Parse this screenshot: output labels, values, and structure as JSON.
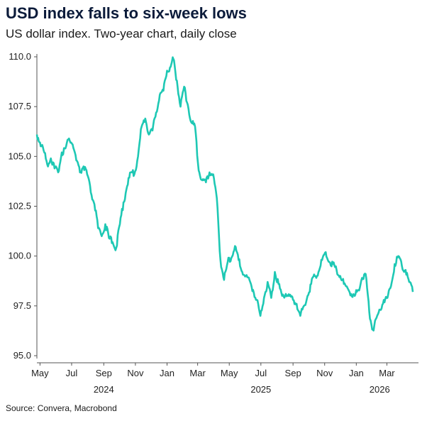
{
  "title": "USD index falls to six-week lows",
  "subtitle": "US dollar index. Two-year chart, daily close",
  "source": "Source: Convera, Macrobond",
  "chart_data": {
    "type": "line",
    "title": "USD index falls to six-week lows",
    "subtitle": "US dollar index. Two-year chart, daily close",
    "ylim": [
      95.0,
      110.0
    ],
    "y_ticks": [
      "110.0",
      "107.5",
      "105.0",
      "102.5",
      "100.0",
      "97.5",
      "95.0"
    ],
    "x_ticks": [
      "May",
      "Jul",
      "Sep",
      "Nov",
      "Jan",
      "Mar",
      "May",
      "Jul",
      "Sep",
      "Nov",
      "Jan",
      "Mar"
    ],
    "x_years": [
      "2024",
      "2025",
      "2026"
    ],
    "grid": false,
    "color": "#1ec8b4",
    "series": [
      {
        "x": [
          "2024-04-25",
          "2024-05-01",
          "2024-05-08",
          "2024-05-15",
          "2024-05-22",
          "2024-05-29",
          "2024-06-05",
          "2024-06-12",
          "2024-06-19",
          "2024-06-26",
          "2024-07-03",
          "2024-07-10",
          "2024-07-17",
          "2024-07-24",
          "2024-07-31",
          "2024-08-07",
          "2024-08-14",
          "2024-08-21",
          "2024-08-28",
          "2024-09-04",
          "2024-09-11",
          "2024-09-18",
          "2024-09-25",
          "2024-10-02",
          "2024-10-09",
          "2024-10-16",
          "2024-10-23",
          "2024-10-30",
          "2024-11-06",
          "2024-11-13",
          "2024-11-20",
          "2024-11-27",
          "2024-12-04",
          "2024-12-11",
          "2024-12-18",
          "2024-12-25",
          "2025-01-01",
          "2025-01-08",
          "2025-01-13",
          "2025-01-20",
          "2025-01-27",
          "2025-02-03",
          "2025-02-10",
          "2025-02-17",
          "2025-02-24",
          "2025-03-03",
          "2025-03-10",
          "2025-03-17",
          "2025-03-24",
          "2025-03-31",
          "2025-04-07",
          "2025-04-14",
          "2025-04-21",
          "2025-04-28",
          "2025-05-05",
          "2025-05-12",
          "2025-05-19",
          "2025-05-26",
          "2025-06-02",
          "2025-06-09",
          "2025-06-16",
          "2025-06-23",
          "2025-06-30",
          "2025-07-07",
          "2025-07-14",
          "2025-07-21",
          "2025-07-28",
          "2025-08-04",
          "2025-08-11",
          "2025-08-18",
          "2025-08-25",
          "2025-09-01",
          "2025-09-08",
          "2025-09-15",
          "2025-09-22",
          "2025-09-29",
          "2025-10-06",
          "2025-10-13",
          "2025-10-20",
          "2025-10-27",
          "2025-11-03",
          "2025-11-10",
          "2025-11-17",
          "2025-11-24",
          "2025-12-01",
          "2025-12-08",
          "2025-12-15",
          "2025-12-22",
          "2025-12-29",
          "2026-01-05",
          "2026-01-12",
          "2026-01-19",
          "2026-01-26",
          "2026-02-02",
          "2026-02-09",
          "2026-02-16",
          "2026-02-23",
          "2026-03-02",
          "2026-03-09",
          "2026-03-16",
          "2026-03-23",
          "2026-03-30",
          "2026-04-06",
          "2026-04-13",
          "2026-04-20"
        ],
        "values": [
          106.1,
          105.7,
          105.3,
          104.6,
          104.9,
          104.4,
          104.2,
          105.2,
          105.4,
          105.9,
          105.6,
          104.8,
          104.2,
          104.5,
          104.1,
          103.2,
          102.6,
          101.4,
          101.0,
          101.6,
          100.9,
          100.7,
          100.4,
          101.6,
          102.7,
          103.5,
          104.2,
          104.1,
          105.0,
          106.5,
          106.9,
          106.1,
          106.3,
          107.2,
          108.1,
          108.3,
          109.3,
          109.5,
          109.9,
          108.8,
          107.5,
          108.5,
          107.6,
          106.7,
          106.5,
          104.3,
          103.8,
          103.7,
          104.2,
          104.1,
          102.9,
          99.8,
          98.8,
          99.7,
          99.9,
          100.5,
          99.8,
          99.2,
          99.0,
          98.8,
          98.3,
          97.8,
          97.0,
          97.9,
          98.7,
          97.9,
          99.2,
          98.6,
          98.0,
          98.1,
          98.0,
          97.8,
          97.6,
          97.0,
          97.5,
          98.0,
          98.6,
          99.0,
          99.2,
          99.8,
          100.2,
          99.7,
          99.6,
          99.3,
          99.0,
          98.6,
          98.4,
          98.1,
          98.0,
          98.3,
          98.9,
          99.1,
          97.2,
          96.3,
          96.9,
          97.3,
          97.8,
          97.9,
          98.5,
          99.6,
          100.0,
          99.5,
          99.3,
          98.7,
          98.2
        ]
      }
    ]
  }
}
